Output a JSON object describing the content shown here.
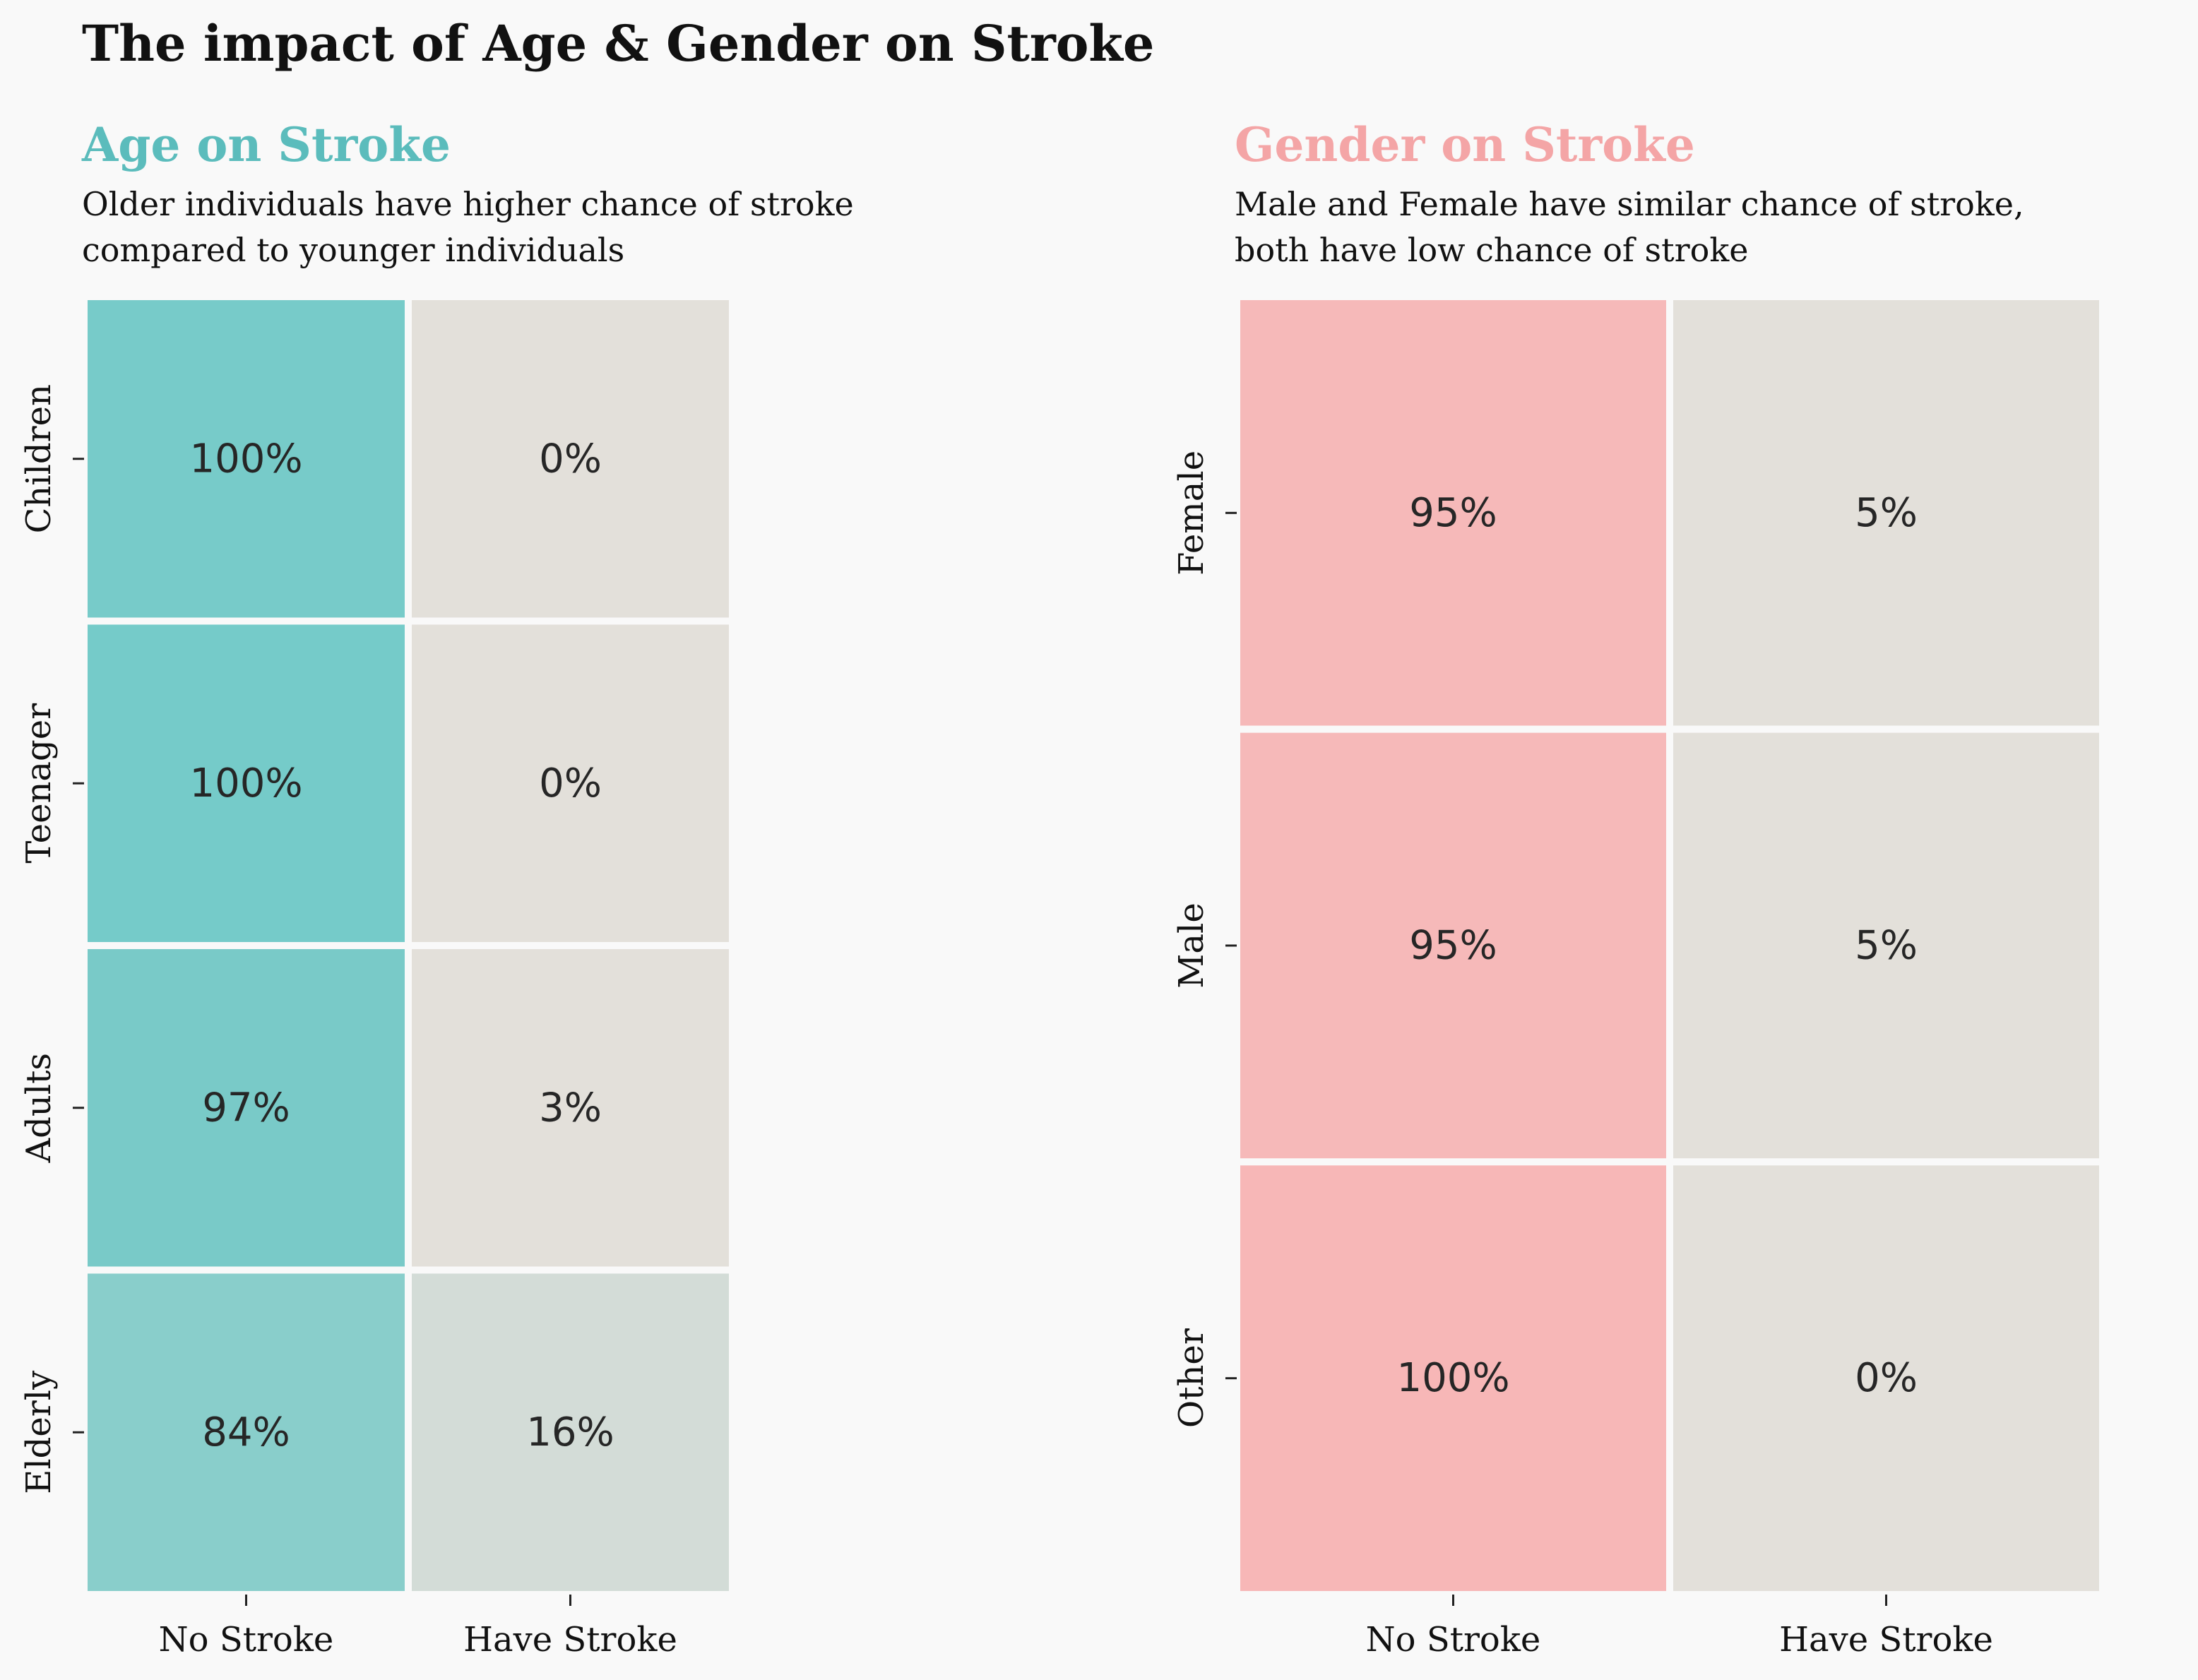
{
  "figure": {
    "title": "The impact of Age & Gender on Stroke",
    "background": "#f9f9f9"
  },
  "chart_data": [
    {
      "type": "heatmap",
      "title": "Age on Stroke",
      "title_color": "#5bbcbc",
      "subtitle_lines": [
        "Older individuals have higher chance of stroke",
        "compared to younger individuals"
      ],
      "x_categories": [
        "No Stroke",
        "Have Stroke"
      ],
      "y_categories": [
        "Children",
        "Teenager",
        "Adults",
        "Elderly"
      ],
      "values": [
        [
          100,
          0
        ],
        [
          100,
          0
        ],
        [
          97,
          3
        ],
        [
          84,
          16
        ]
      ],
      "cell_labels": [
        [
          "100%",
          "0%"
        ],
        [
          "100%",
          "0%"
        ],
        [
          "97%",
          "3%"
        ],
        [
          "84%",
          "16%"
        ]
      ],
      "cell_colors": [
        [
          "#77cbc9",
          "#e3e0da"
        ],
        [
          "#75cbc9",
          "#e3e0da"
        ],
        [
          "#79cac8",
          "#e3e0da"
        ],
        [
          "#89cecb",
          "#d3dcd7"
        ]
      ],
      "xlabel": "",
      "ylabel": ""
    },
    {
      "type": "heatmap",
      "title": "Gender on Stroke",
      "title_color": "#f4a5a6",
      "subtitle_lines": [
        "Male and Female have similar chance of stroke,",
        "both have low chance of stroke"
      ],
      "x_categories": [
        "No Stroke",
        "Have Stroke"
      ],
      "y_categories": [
        "Female",
        "Male",
        "Other"
      ],
      "values": [
        [
          95,
          5
        ],
        [
          95,
          5
        ],
        [
          100,
          0
        ]
      ],
      "cell_labels": [
        [
          "95%",
          "5%"
        ],
        [
          "95%",
          "5%"
        ],
        [
          "100%",
          "0%"
        ]
      ],
      "cell_colors": [
        [
          "#f6b9b9",
          "#e3e0da"
        ],
        [
          "#f6b9b9",
          "#e3e0da"
        ],
        [
          "#f7b7b7",
          "#e3e0da"
        ]
      ],
      "xlabel": "",
      "ylabel": ""
    }
  ]
}
